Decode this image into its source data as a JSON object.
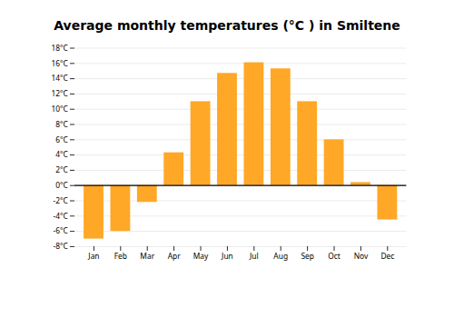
{
  "chart_data": {
    "type": "bar",
    "title": "Average monthly temperatures (°C ) in Smiltene",
    "categories": [
      "Jan",
      "Feb",
      "Mar",
      "Apr",
      "May",
      "Jun",
      "Jul",
      "Aug",
      "Sep",
      "Oct",
      "Nov",
      "Dec"
    ],
    "values": [
      -7.0,
      -6.0,
      -2.2,
      4.3,
      11.0,
      14.7,
      16.1,
      15.3,
      11.0,
      6.0,
      0.4,
      -4.5
    ],
    "color": "#FFA726",
    "ylim": [
      -8,
      18
    ],
    "yticks": [
      {
        "value": -8,
        "label": "-8°C"
      },
      {
        "value": -6,
        "label": "-6°C"
      },
      {
        "value": -4,
        "label": "-4°C"
      },
      {
        "value": -2,
        "label": "-2°C"
      },
      {
        "value": 0,
        "label": "0°C"
      },
      {
        "value": 2,
        "label": "2°C"
      },
      {
        "value": 4,
        "label": "4°C"
      },
      {
        "value": 6,
        "label": "6°C"
      },
      {
        "value": 8,
        "label": "8°C"
      },
      {
        "value": 10,
        "label": "10°C"
      },
      {
        "value": 12,
        "label": "12°C"
      },
      {
        "value": 14,
        "label": "14°C"
      },
      {
        "value": 16,
        "label": "16°C"
      },
      {
        "value": 18,
        "label": "18°C"
      }
    ],
    "grid": true
  }
}
